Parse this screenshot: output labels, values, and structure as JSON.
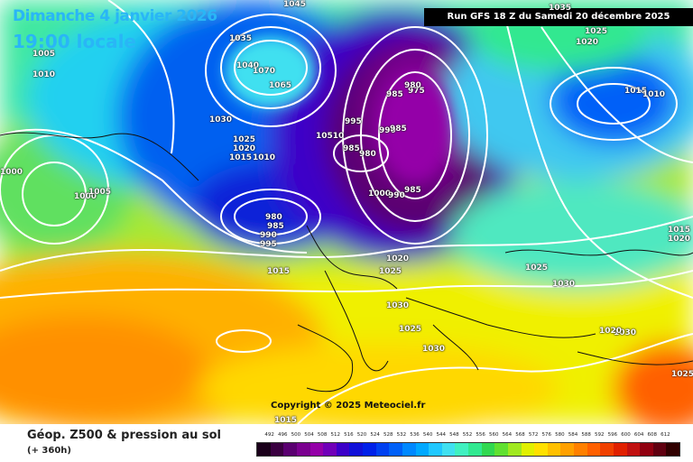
{
  "header": {
    "date": "Dimanche 4 janvier 2026",
    "time": "19:00 locale",
    "run": "Run GFS 18 Z du Samedi 20 décembre 2025"
  },
  "copyright": "Copyright © 2025 Meteociel.fr",
  "legend": {
    "title": "Géop. Z500 & pression au sol",
    "subtitle": "(+ 360h)",
    "ticks": [
      "492",
      "496",
      "500",
      "504",
      "508",
      "512",
      "516",
      "520",
      "524",
      "528",
      "532",
      "536",
      "540",
      "544",
      "548",
      "552",
      "556",
      "560",
      "564",
      "568",
      "572",
      "576",
      "580",
      "584",
      "588",
      "592",
      "596",
      "600",
      "604",
      "608",
      "612"
    ],
    "colors": [
      "#1a001a",
      "#3a0040",
      "#5a0070",
      "#7a008f",
      "#9400a8",
      "#7000b8",
      "#3c00c8",
      "#1010d8",
      "#0020e8",
      "#0040f0",
      "#0060f8",
      "#0088ff",
      "#00a8ff",
      "#20c8ff",
      "#40e0f0",
      "#40f0c0",
      "#30e890",
      "#30d850",
      "#60e030",
      "#a0e820",
      "#e0f000",
      "#ffe000",
      "#ffc000",
      "#ffa000",
      "#ff8000",
      "#ff6000",
      "#f04000",
      "#e02000",
      "#c01010",
      "#900010",
      "#600010",
      "#300000"
    ]
  },
  "pressure_labels": [
    "1005",
    "1010",
    "1000",
    "1000",
    "1005",
    "1035",
    "1040",
    "1070",
    "1065",
    "1030",
    "1025",
    "1020",
    "1015",
    "1010",
    "10510",
    "995",
    "985",
    "980",
    "985",
    "975",
    "990",
    "985",
    "980",
    "1000",
    "990",
    "985",
    "980",
    "985",
    "990",
    "995",
    "1015",
    "1020",
    "1025",
    "1030",
    "1025",
    "1030",
    "1035",
    "1045",
    "1025",
    "1020",
    "1015",
    "1010",
    "1030",
    "1025",
    "1030",
    "1020",
    "1015",
    "1025",
    "1015",
    "1020"
  ]
}
